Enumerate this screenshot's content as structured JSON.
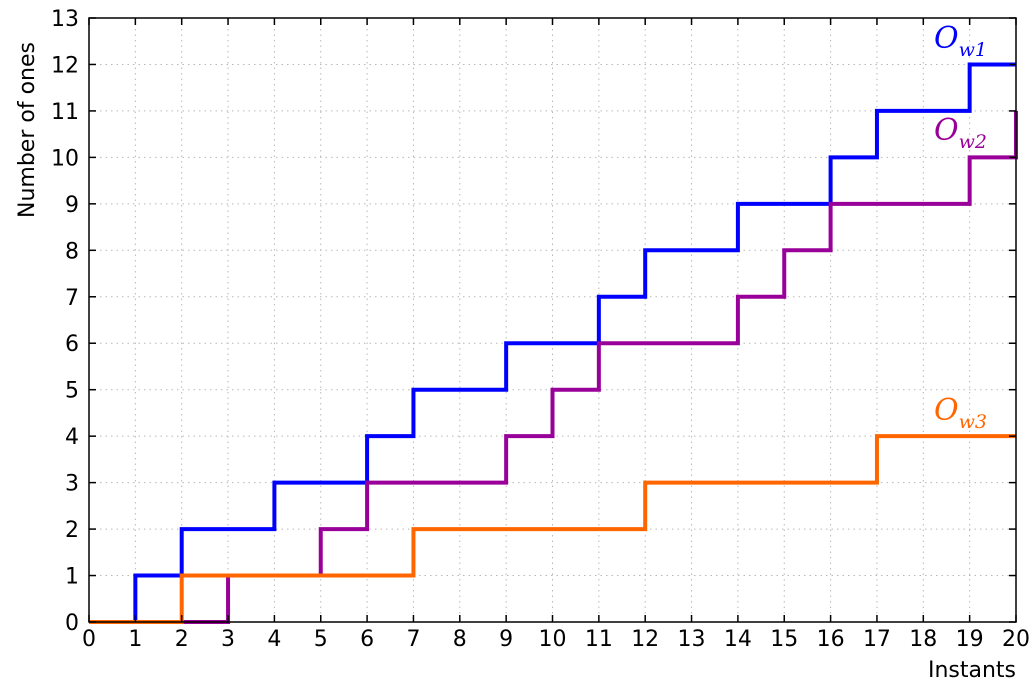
{
  "chart_data": {
    "type": "line",
    "title": "",
    "xlabel": "Instants",
    "ylabel": "Number of ones",
    "xlim": [
      0,
      20
    ],
    "ylim": [
      0,
      13
    ],
    "xticks": [
      0,
      1,
      2,
      3,
      4,
      5,
      6,
      7,
      8,
      9,
      10,
      11,
      12,
      13,
      14,
      15,
      16,
      17,
      18,
      19,
      20
    ],
    "yticks": [
      0,
      1,
      2,
      3,
      4,
      5,
      6,
      7,
      8,
      9,
      10,
      11,
      12,
      13
    ],
    "grid": true,
    "step": "post",
    "series": [
      {
        "name": "O",
        "name_sub": "w1",
        "color": "#0000ff",
        "x": [
          0,
          1,
          2,
          3,
          4,
          5,
          6,
          7,
          8,
          9,
          10,
          11,
          12,
          13,
          14,
          15,
          16,
          17,
          18,
          19,
          20
        ],
        "y": [
          0,
          1,
          2,
          2,
          3,
          3,
          4,
          5,
          5,
          6,
          6,
          7,
          8,
          8,
          9,
          9,
          10,
          11,
          11,
          12,
          12
        ]
      },
      {
        "name": "O",
        "name_sub": "w2",
        "color": "#990099",
        "x": [
          0,
          1,
          2,
          3,
          4,
          5,
          6,
          7,
          8,
          9,
          10,
          11,
          12,
          13,
          14,
          15,
          16,
          17,
          18,
          19,
          20
        ],
        "y": [
          0,
          0,
          0,
          1,
          1,
          2,
          3,
          3,
          3,
          4,
          5,
          6,
          6,
          6,
          7,
          8,
          9,
          9,
          9,
          10,
          11
        ]
      },
      {
        "name": "O",
        "name_sub": "w3",
        "color": "#ff6600",
        "x": [
          0,
          1,
          2,
          3,
          4,
          5,
          6,
          7,
          8,
          9,
          10,
          11,
          12,
          13,
          14,
          15,
          16,
          17,
          18,
          19,
          20
        ],
        "y": [
          0,
          0,
          1,
          1,
          1,
          1,
          1,
          2,
          2,
          2,
          2,
          2,
          3,
          3,
          3,
          3,
          3,
          4,
          4,
          4,
          4
        ]
      }
    ]
  }
}
